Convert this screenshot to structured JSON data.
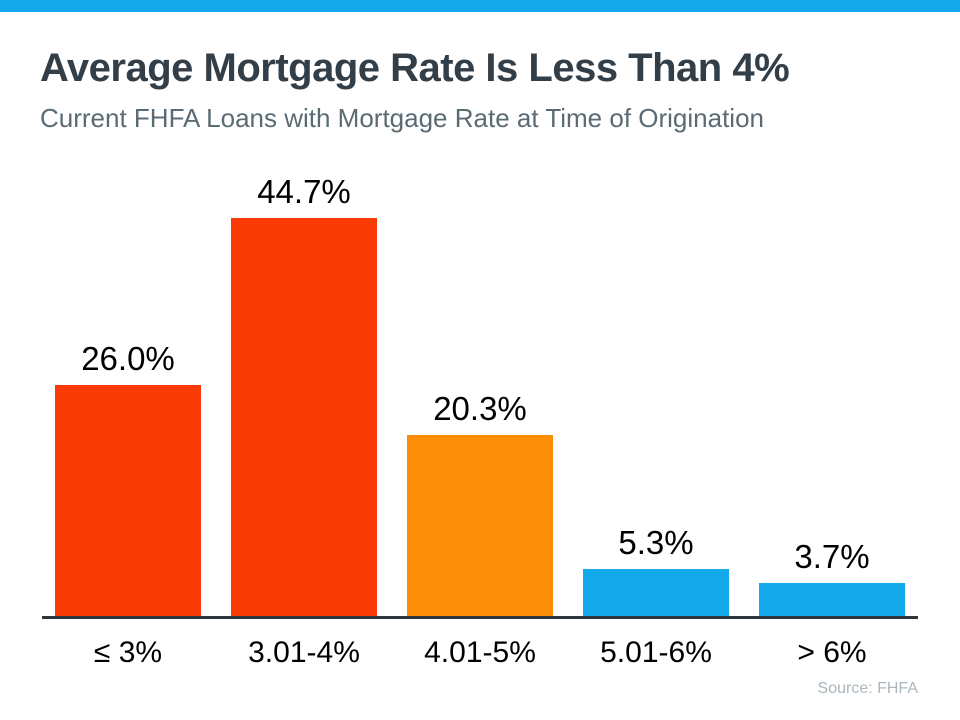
{
  "page": {
    "title": "Average Mortgage Rate Is Less Than 4%",
    "subtitle": "Current FHFA Loans with Mortgage Rate at Time of Origination",
    "source": "Source: FHFA"
  },
  "colors": {
    "top_strip": "#14A9EA",
    "title": "#333F48",
    "subtitle": "#5B6B74",
    "axis": "#30353A",
    "data_label": "#000000",
    "tick_label": "#000000",
    "source": "#ABB6BD"
  },
  "chart_data": {
    "type": "bar",
    "title": "Average Mortgage Rate Is Less Than 4%",
    "subtitle": "Current FHFA Loans with Mortgage Rate at Time of Origination",
    "categories": [
      "≤ 3%",
      "3.01-4%",
      "4.01-5%",
      "5.01-6%",
      "> 6%"
    ],
    "values": [
      26.0,
      44.7,
      20.3,
      5.3,
      3.7
    ],
    "value_labels": [
      "26.0%",
      "44.7%",
      "20.3%",
      "5.3%",
      "3.7%"
    ],
    "bar_colors": [
      "#FB3B05",
      "#FB3B05",
      "#FB8E06",
      "#14A9EA",
      "#14A9EA"
    ],
    "unit": "%",
    "xlabel": "",
    "ylabel": "",
    "ylim": [
      0,
      50
    ],
    "grid": false,
    "legend": false,
    "source_note": "Source: FHFA"
  }
}
